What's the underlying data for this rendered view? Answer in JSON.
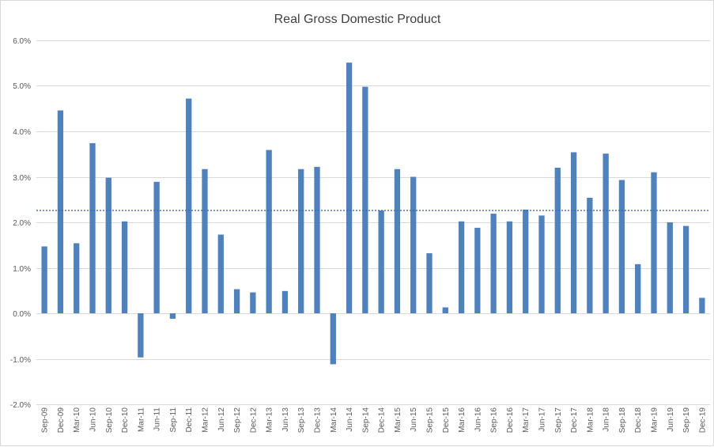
{
  "chart_data": {
    "type": "bar",
    "title": "Real Gross Domestic Product",
    "xlabel": "",
    "ylabel": "",
    "ylim": [
      -0.02,
      0.06
    ],
    "yticks": [
      -0.02,
      -0.01,
      0.0,
      0.01,
      0.02,
      0.03,
      0.04,
      0.05,
      0.06
    ],
    "ytick_labels": [
      "-2.0%",
      "-1.0%",
      "0.0%",
      "1.0%",
      "2.0%",
      "3.0%",
      "4.0%",
      "5.0%",
      "6.0%"
    ],
    "grid": true,
    "average_line": 0.0226,
    "bar_color": "#4f81bd",
    "categories": [
      "Sep-09",
      "Dec-09",
      "Mar-10",
      "Jun-10",
      "Sep-10",
      "Dec-10",
      "Mar-11",
      "Jun-11",
      "Sep-11",
      "Dec-11",
      "Mar-12",
      "Jun-12",
      "Sep-12",
      "Dec-12",
      "Mar-13",
      "Jun-13",
      "Sep-13",
      "Dec-13",
      "Mar-14",
      "Jun-14",
      "Sep-14",
      "Dec-14",
      "Mar-15",
      "Jun-15",
      "Sep-15",
      "Dec-15",
      "Mar-16",
      "Jun-16",
      "Sep-16",
      "Dec-16",
      "Mar-17",
      "Jun-17",
      "Sep-17",
      "Dec-17",
      "Mar-18",
      "Jun-18",
      "Sep-18",
      "Dec-18",
      "Mar-19",
      "Jun-19",
      "Sep-19",
      "Dec-19"
    ],
    "values": [
      0.0147,
      0.0446,
      0.0154,
      0.0374,
      0.0298,
      0.0202,
      -0.0097,
      0.0289,
      -0.0012,
      0.0472,
      0.0317,
      0.0173,
      0.0053,
      0.0046,
      0.0359,
      0.0049,
      0.0317,
      0.0322,
      -0.0112,
      0.0551,
      0.0498,
      0.0226,
      0.0317,
      0.03,
      0.0132,
      0.0013,
      0.0202,
      0.0188,
      0.0219,
      0.0202,
      0.0228,
      0.0215,
      0.032,
      0.0354,
      0.0254,
      0.0351,
      0.0293,
      0.0108,
      0.031,
      0.02,
      0.0192,
      0.0034
    ]
  }
}
